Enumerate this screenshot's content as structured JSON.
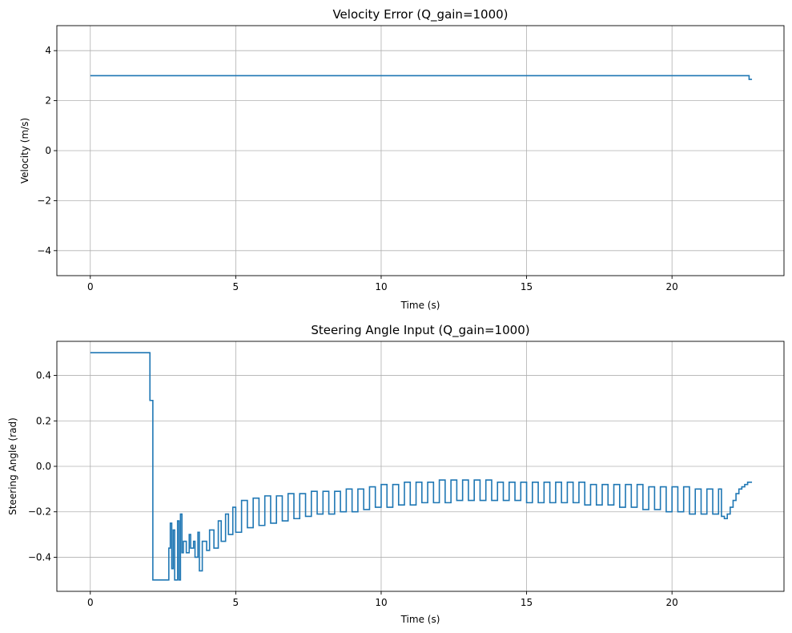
{
  "colors": {
    "series": "#1f77b4"
  },
  "chart_data": [
    {
      "type": "line",
      "title": "Velocity Error (Q_gain=1000)",
      "xlabel": "Time (s)",
      "ylabel": "Velocity (m/s)",
      "xlim": [
        -1.15,
        23.85
      ],
      "ylim": [
        -5,
        5
      ],
      "xticks": [
        0,
        5,
        10,
        15,
        20
      ],
      "xtick_labels": [
        "0",
        "5",
        "10",
        "15",
        "20"
      ],
      "yticks": [
        -4,
        -2,
        0,
        2,
        4
      ],
      "ytick_labels": [
        "−4",
        "−2",
        "0",
        "2",
        "4"
      ],
      "grid": true,
      "step": true,
      "series": [
        {
          "x": [
            0,
            22.65,
            22.65,
            22.75
          ],
          "y": [
            3.0,
            3.0,
            2.85,
            2.85
          ]
        }
      ]
    },
    {
      "type": "line",
      "title": "Steering Angle Input (Q_gain=1000)",
      "xlabel": "Time (s)",
      "ylabel": "Steering Angle (rad)",
      "xlim": [
        -1.15,
        23.85
      ],
      "ylim": [
        -0.55,
        0.55
      ],
      "xticks": [
        0,
        5,
        10,
        15,
        20
      ],
      "xtick_labels": [
        "0",
        "5",
        "10",
        "15",
        "20"
      ],
      "yticks": [
        -0.4,
        -0.2,
        0.0,
        0.2,
        0.4
      ],
      "ytick_labels": [
        "−0.4",
        "−0.2",
        "0.0",
        "0.2",
        "0.4"
      ],
      "grid": true,
      "step": true,
      "series": [
        {
          "x": [
            0,
            2.05,
            2.1,
            2.15,
            2.7,
            2.75,
            2.8,
            2.85,
            2.9,
            3.0,
            3.05,
            3.1,
            3.15,
            3.2,
            3.3,
            3.4,
            3.45,
            3.55,
            3.6,
            3.7,
            3.75,
            3.85,
            4.0,
            4.1,
            4.25,
            4.4,
            4.5,
            4.65,
            4.75,
            4.9,
            5.0,
            5.2,
            5.4,
            5.6,
            5.8,
            6.0,
            6.2,
            6.4,
            6.6,
            6.8,
            7.0,
            7.2,
            7.4,
            7.6,
            7.8,
            8.0,
            8.2,
            8.4,
            8.6,
            8.8,
            9.0,
            9.2,
            9.4,
            9.6,
            9.8,
            10.0,
            10.2,
            10.4,
            10.6,
            10.8,
            11.0,
            11.2,
            11.4,
            11.6,
            11.8,
            12.0,
            12.2,
            12.4,
            12.6,
            12.8,
            13.0,
            13.2,
            13.4,
            13.6,
            13.8,
            14.0,
            14.2,
            14.4,
            14.6,
            14.8,
            15.0,
            15.2,
            15.4,
            15.6,
            15.8,
            16.0,
            16.2,
            16.4,
            16.6,
            16.8,
            17.0,
            17.2,
            17.4,
            17.6,
            17.8,
            18.0,
            18.2,
            18.4,
            18.6,
            18.8,
            19.0,
            19.2,
            19.4,
            19.6,
            19.8,
            20.0,
            20.2,
            20.4,
            20.6,
            20.8,
            21.0,
            21.2,
            21.4,
            21.6,
            21.7,
            21.8,
            21.9,
            22.0,
            22.1,
            22.2,
            22.3,
            22.4,
            22.5,
            22.6,
            22.7,
            22.75
          ],
          "y": [
            0.5,
            0.29,
            0.29,
            -0.5,
            -0.36,
            -0.25,
            -0.45,
            -0.28,
            -0.5,
            -0.24,
            -0.5,
            -0.21,
            -0.38,
            -0.33,
            -0.38,
            -0.3,
            -0.36,
            -0.33,
            -0.4,
            -0.29,
            -0.46,
            -0.33,
            -0.37,
            -0.28,
            -0.36,
            -0.24,
            -0.33,
            -0.21,
            -0.3,
            -0.18,
            -0.29,
            -0.15,
            -0.27,
            -0.14,
            -0.26,
            -0.13,
            -0.25,
            -0.13,
            -0.24,
            -0.12,
            -0.23,
            -0.12,
            -0.22,
            -0.11,
            -0.21,
            -0.11,
            -0.21,
            -0.11,
            -0.2,
            -0.1,
            -0.2,
            -0.1,
            -0.19,
            -0.09,
            -0.18,
            -0.08,
            -0.18,
            -0.08,
            -0.17,
            -0.07,
            -0.17,
            -0.07,
            -0.16,
            -0.07,
            -0.16,
            -0.06,
            -0.16,
            -0.06,
            -0.15,
            -0.06,
            -0.15,
            -0.06,
            -0.15,
            -0.06,
            -0.15,
            -0.07,
            -0.15,
            -0.07,
            -0.15,
            -0.07,
            -0.16,
            -0.07,
            -0.16,
            -0.07,
            -0.16,
            -0.07,
            -0.16,
            -0.07,
            -0.16,
            -0.07,
            -0.17,
            -0.08,
            -0.17,
            -0.08,
            -0.17,
            -0.08,
            -0.18,
            -0.08,
            -0.18,
            -0.08,
            -0.19,
            -0.09,
            -0.19,
            -0.09,
            -0.2,
            -0.09,
            -0.2,
            -0.09,
            -0.21,
            -0.1,
            -0.21,
            -0.1,
            -0.21,
            -0.1,
            -0.22,
            -0.23,
            -0.21,
            -0.18,
            -0.15,
            -0.12,
            -0.1,
            -0.09,
            -0.08,
            -0.07,
            -0.07,
            -0.07
          ]
        }
      ]
    }
  ]
}
